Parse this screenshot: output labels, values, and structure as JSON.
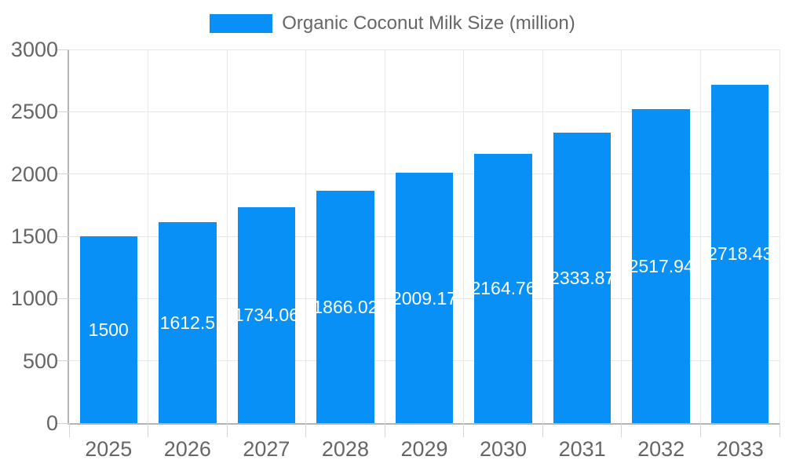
{
  "chart": {
    "legend": {
      "series_label": "Organic Coconut Milk Size (million)"
    }
  },
  "colors": {
    "bar_fill": "#0990f7",
    "tick_text": "#666666",
    "grid_line": "#e8e8e8",
    "axis_line": "#b4b4b4",
    "tick_mark": "#d4d4d4",
    "value_label_text": "#ffffff"
  },
  "chart_data": {
    "type": "bar",
    "title": "Organic Coconut Milk Size (million)",
    "categories": [
      "2025",
      "2026",
      "2027",
      "2028",
      "2029",
      "2030",
      "2031",
      "2032",
      "2033"
    ],
    "series": [
      {
        "name": "Organic Coconut Milk Size (million)",
        "values": [
          1500,
          1612.5,
          1734.06,
          1866.02,
          2009.17,
          2164.76,
          2333.87,
          2517.94,
          2718.43
        ],
        "value_labels": [
          "1500",
          "1612.5",
          "1734.06",
          "1866.02",
          "2009.17",
          "2164.76",
          "2333.87",
          "2517.94",
          "2718.43"
        ]
      }
    ],
    "xlabel": "",
    "ylabel": "",
    "ylim": [
      0,
      3000
    ],
    "yticks": [
      0,
      500,
      1000,
      1500,
      2000,
      2500,
      3000
    ],
    "grid": true,
    "legend_position": "top-center",
    "bar_label_position": "center-inside",
    "bar_label_color": "#ffffff"
  }
}
